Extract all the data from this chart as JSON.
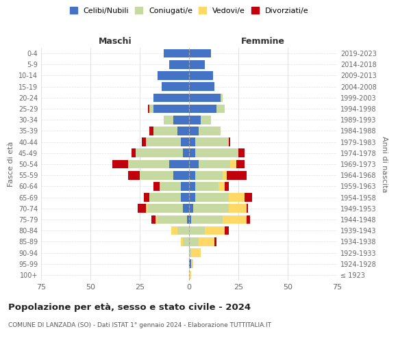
{
  "age_groups": [
    "100+",
    "95-99",
    "90-94",
    "85-89",
    "80-84",
    "75-79",
    "70-74",
    "65-69",
    "60-64",
    "55-59",
    "50-54",
    "45-49",
    "40-44",
    "35-39",
    "30-34",
    "25-29",
    "20-24",
    "15-19",
    "10-14",
    "5-9",
    "0-4"
  ],
  "birth_years": [
    "≤ 1923",
    "1924-1928",
    "1929-1933",
    "1934-1938",
    "1939-1943",
    "1944-1948",
    "1949-1953",
    "1954-1958",
    "1959-1963",
    "1964-1968",
    "1969-1973",
    "1974-1978",
    "1979-1983",
    "1984-1988",
    "1989-1993",
    "1994-1998",
    "1999-2003",
    "2004-2008",
    "2009-2013",
    "2014-2018",
    "2019-2023"
  ],
  "colors": {
    "celibi": "#4472C4",
    "coniugati": "#C5D9A0",
    "vedovi": "#FFD966",
    "divorziati": "#C0000A"
  },
  "males": {
    "celibi": [
      0,
      0,
      0,
      0,
      0,
      1,
      3,
      4,
      4,
      8,
      10,
      3,
      4,
      6,
      8,
      18,
      18,
      14,
      16,
      10,
      13
    ],
    "coniugati": [
      0,
      0,
      0,
      3,
      6,
      15,
      18,
      16,
      11,
      17,
      21,
      24,
      18,
      12,
      5,
      2,
      0,
      0,
      0,
      0,
      0
    ],
    "vedovi": [
      0,
      0,
      0,
      1,
      3,
      1,
      1,
      0,
      0,
      0,
      0,
      0,
      0,
      0,
      0,
      0,
      0,
      0,
      0,
      0,
      0
    ],
    "divorziati": [
      0,
      0,
      0,
      0,
      0,
      2,
      4,
      3,
      3,
      6,
      8,
      2,
      2,
      2,
      0,
      1,
      0,
      0,
      0,
      0,
      0
    ]
  },
  "females": {
    "celibi": [
      0,
      1,
      0,
      0,
      0,
      1,
      2,
      3,
      3,
      3,
      5,
      3,
      3,
      5,
      6,
      14,
      16,
      13,
      12,
      8,
      11
    ],
    "coniugati": [
      0,
      0,
      1,
      5,
      8,
      16,
      18,
      17,
      12,
      14,
      16,
      22,
      17,
      11,
      5,
      4,
      1,
      0,
      0,
      0,
      0
    ],
    "vedovi": [
      1,
      1,
      5,
      8,
      10,
      12,
      9,
      8,
      3,
      2,
      3,
      0,
      0,
      0,
      0,
      0,
      0,
      0,
      0,
      0,
      0
    ],
    "divorziati": [
      0,
      0,
      0,
      1,
      2,
      2,
      1,
      4,
      2,
      10,
      4,
      3,
      1,
      0,
      0,
      0,
      0,
      0,
      0,
      0,
      0
    ]
  },
  "xlim": 75,
  "title": "Popolazione per età, sesso e stato civile - 2024",
  "subtitle": "COMUNE DI LANZADA (SO) - Dati ISTAT 1° gennaio 2024 - Elaborazione TUTTITALIA.IT",
  "ylabel_left": "Fasce di età",
  "ylabel_right": "Anni di nascita",
  "legend_labels": [
    "Celibi/Nubili",
    "Coniugati/e",
    "Vedovi/e",
    "Divorziati/e"
  ],
  "maschi_label": "Maschi",
  "femmine_label": "Femmine",
  "background_color": "#ffffff",
  "grid_color": "#cccccc"
}
